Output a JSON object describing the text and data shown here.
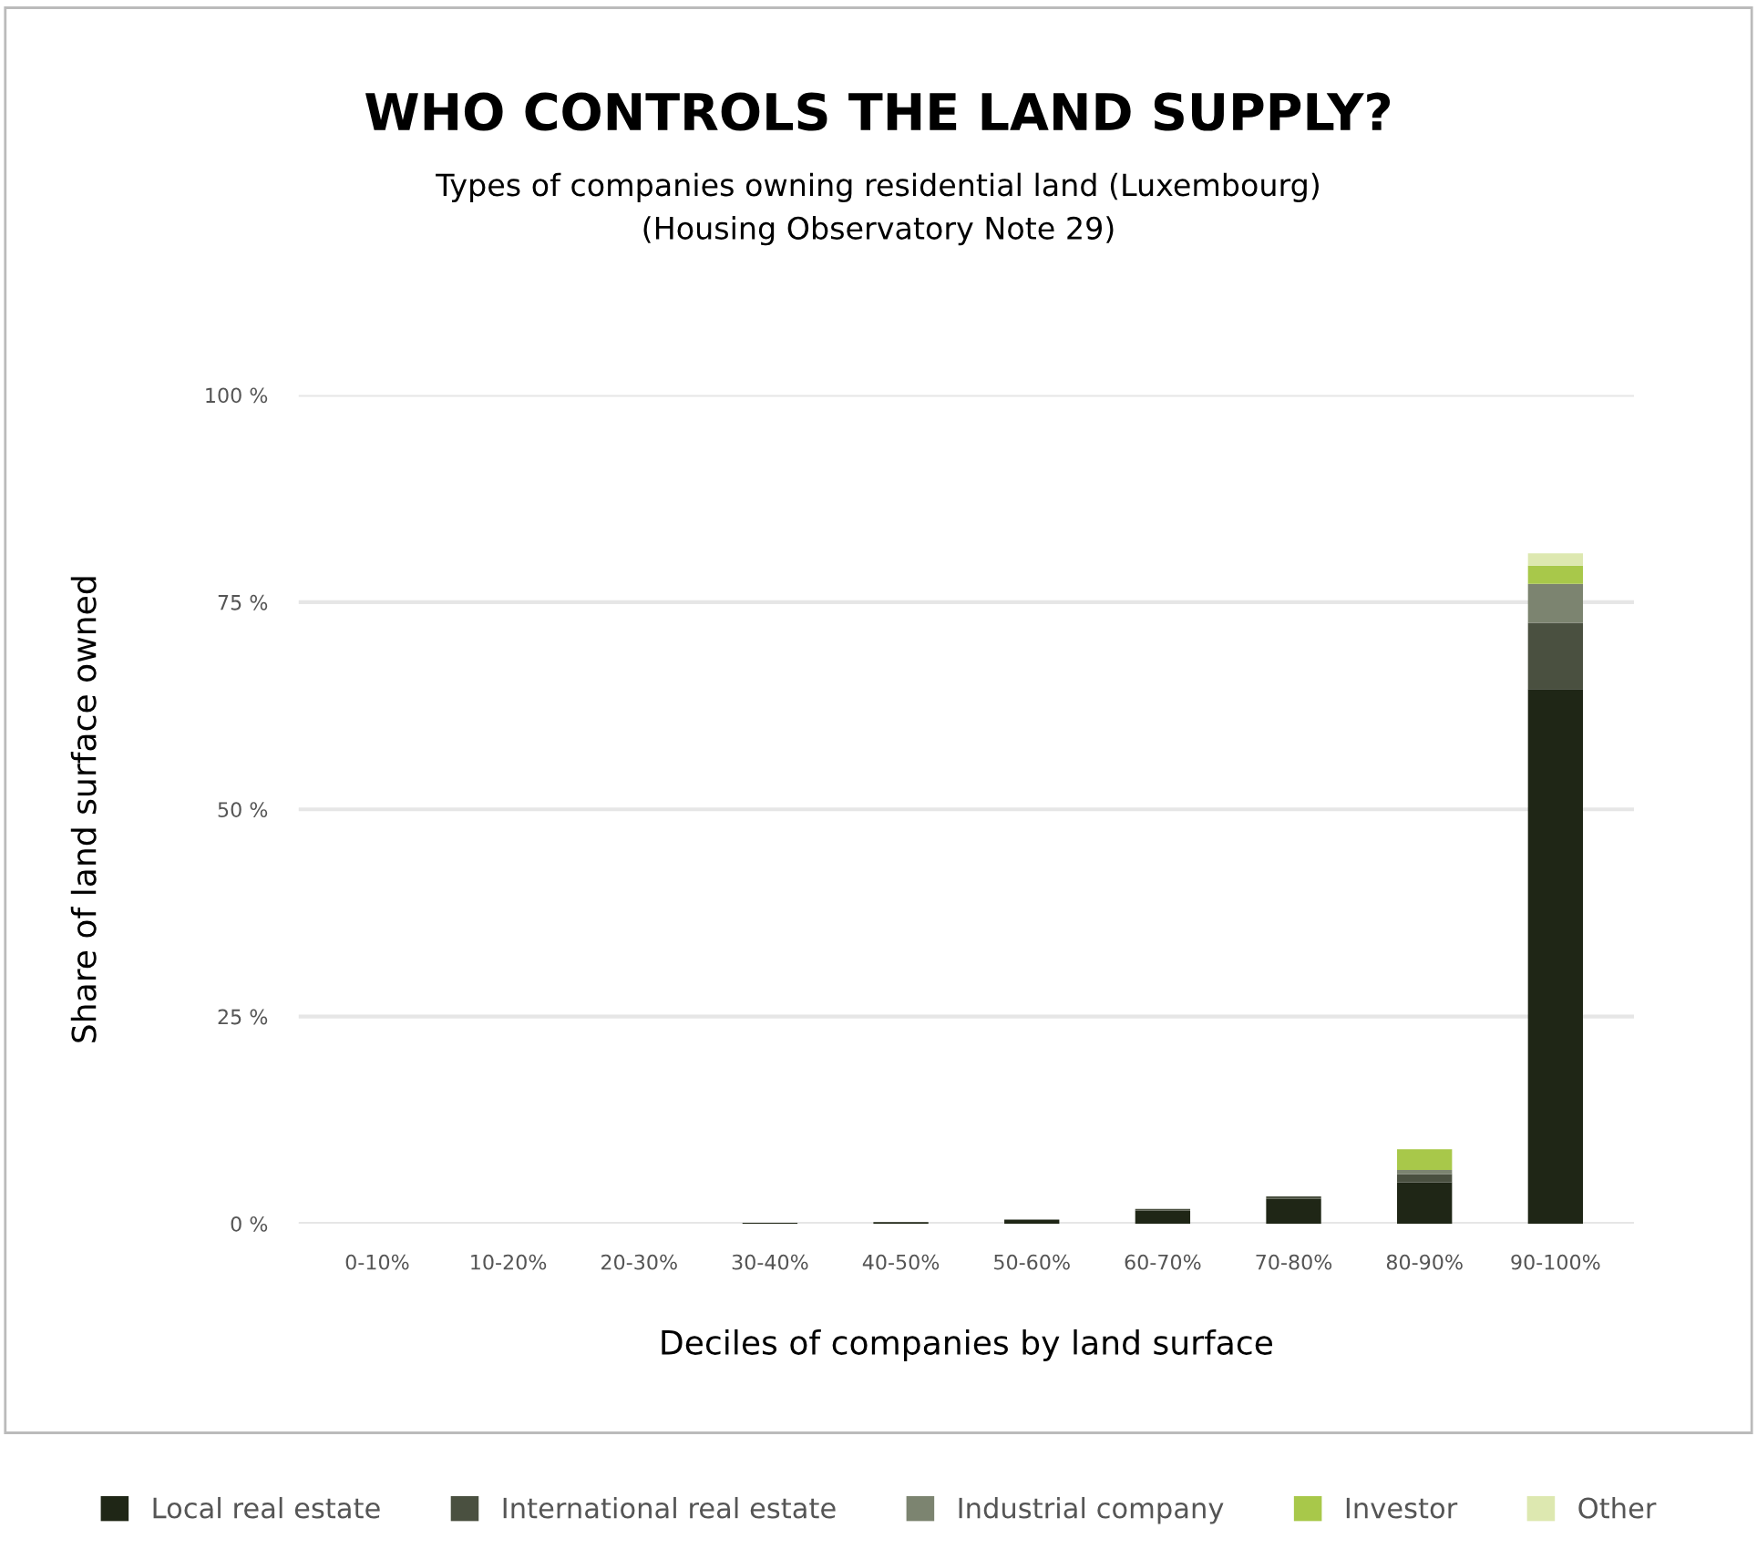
{
  "chart_data": {
    "type": "bar",
    "title": "WHO CONTROLS THE LAND SUPPLY?",
    "subtitle": "Types of companies owning residential land (Luxembourg)\n(Housing Observatory Note 29)",
    "xlabel": "Deciles of companies by land surface",
    "ylabel": "Share of land surface owned",
    "categories": [
      "0-10%",
      "10-20%",
      "20-30%",
      "30-40%",
      "40-50%",
      "50-60%",
      "60-70%",
      "70-80%",
      "80-90%",
      "90-100%"
    ],
    "stacked": true,
    "legend": "bottom",
    "grid": "y",
    "ylim": [
      0,
      100
    ],
    "yticks": [
      {
        "value": 0,
        "label": "0 %"
      },
      {
        "value": 25,
        "label": "25 %"
      },
      {
        "value": 50,
        "label": "50 %"
      },
      {
        "value": 75,
        "label": "75 %"
      },
      {
        "value": 100,
        "label": "100 %"
      }
    ],
    "series": [
      {
        "name": "Local real estate",
        "color": "#1f2616",
        "values": [
          null,
          null,
          null,
          0.1,
          0.2,
          0.5,
          1.6,
          3.0,
          5.0,
          64.5
        ]
      },
      {
        "name": "International real estate",
        "color": "#4a5040",
        "values": [
          0,
          0,
          0,
          0,
          0,
          null,
          0.2,
          0.3,
          1.0,
          8.0
        ]
      },
      {
        "name": "Industrial company",
        "color": "#7c8470",
        "values": [
          0,
          0,
          0,
          0,
          0,
          0,
          0,
          0,
          0.5,
          4.7
        ]
      },
      {
        "name": "Investor",
        "color": "#a8c84a",
        "values": [
          0,
          0,
          0,
          0,
          0,
          0,
          0,
          0,
          2.5,
          2.2
        ]
      },
      {
        "name": "Other",
        "color": "#dde8b0",
        "values": [
          0,
          0,
          0,
          0,
          0,
          0,
          0,
          0,
          null,
          1.5
        ]
      }
    ]
  }
}
